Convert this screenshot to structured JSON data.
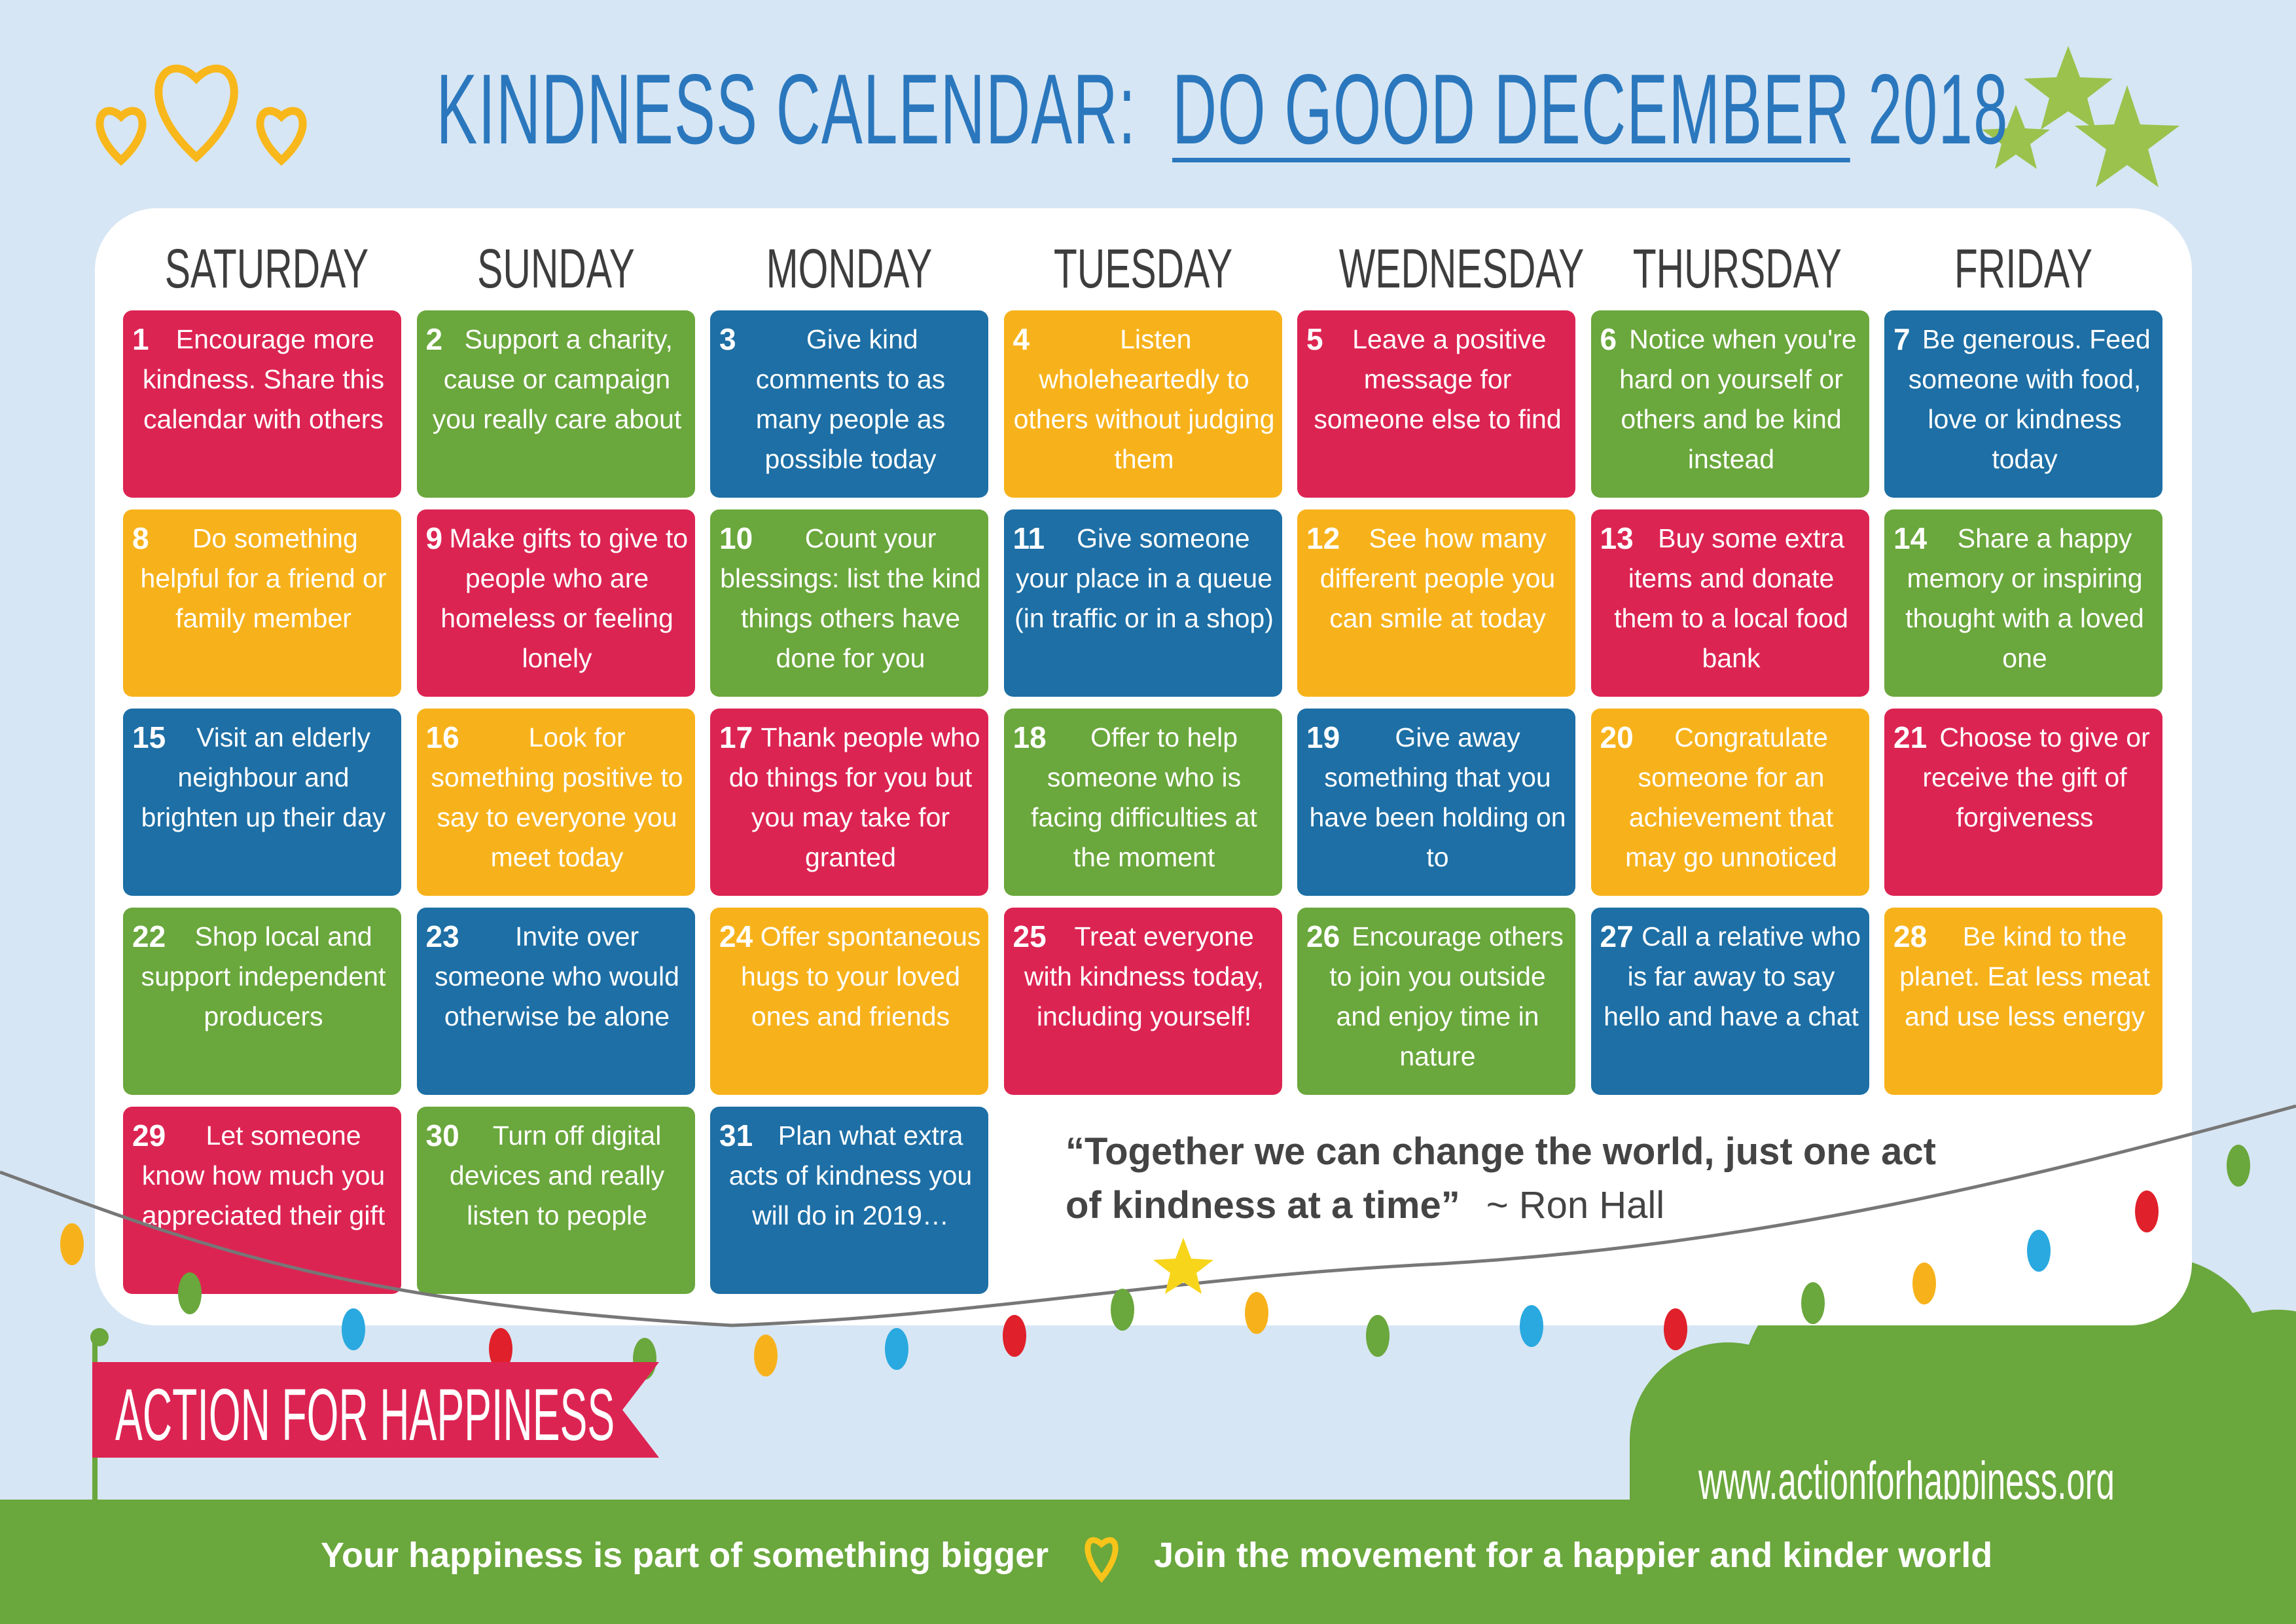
{
  "header": {
    "title": "KINDNESS CALENDAR:",
    "highlight": "DO GOOD DECEMBER",
    "year": "2018"
  },
  "weekdays": [
    "SATURDAY",
    "SUNDAY",
    "MONDAY",
    "TUESDAY",
    "WEDNESDAY",
    "THURSDAY",
    "FRIDAY"
  ],
  "days": [
    {
      "number": 1,
      "text": "Encourage more kindness. Share this calendar with others",
      "color": "#dc2452"
    },
    {
      "number": 2,
      "text": "Support a charity, cause or campaign you really care about",
      "color": "#6aa73c"
    },
    {
      "number": 3,
      "text": "Give kind comments to as many people as possible today",
      "color": "#1d6fa5"
    },
    {
      "number": 4,
      "text": "Listen wholeheartedly to others without judging them",
      "color": "#f7b21b"
    },
    {
      "number": 5,
      "text": "Leave a positive message for someone else to find",
      "color": "#dc2452"
    },
    {
      "number": 6,
      "text": "Notice when you're hard on yourself or others and be kind instead",
      "color": "#6aa73c"
    },
    {
      "number": 7,
      "text": "Be generous. Feed someone with food, love or kindness today",
      "color": "#1d6fa5"
    },
    {
      "number": 8,
      "text": "Do something helpful for a friend or family member",
      "color": "#f7b21b"
    },
    {
      "number": 9,
      "text": "Make gifts to give to people who are homeless or feeling lonely",
      "color": "#dc2452"
    },
    {
      "number": 10,
      "text": "Count your blessings: list the kind things others have done for you",
      "color": "#6aa73c"
    },
    {
      "number": 11,
      "text": "Give someone your place in a queue (in traffic or in a shop)",
      "color": "#1d6fa5"
    },
    {
      "number": 12,
      "text": "See how many different people you can smile at today",
      "color": "#f7b21b"
    },
    {
      "number": 13,
      "text": "Buy some extra items and donate them to a local food bank",
      "color": "#dc2452"
    },
    {
      "number": 14,
      "text": "Share a happy memory or inspiring thought with a loved one",
      "color": "#6aa73c"
    },
    {
      "number": 15,
      "text": "Visit an elderly neighbour and brighten up their day",
      "color": "#1d6fa5"
    },
    {
      "number": 16,
      "text": "Look for something positive to say to everyone you meet today",
      "color": "#f7b21b"
    },
    {
      "number": 17,
      "text": "Thank people who do things for you but you may take for granted",
      "color": "#dc2452"
    },
    {
      "number": 18,
      "text": "Offer to help someone who is facing difficulties at the moment",
      "color": "#6aa73c"
    },
    {
      "number": 19,
      "text": "Give away something that you have been holding on to",
      "color": "#1d6fa5"
    },
    {
      "number": 20,
      "text": "Congratulate someone for an achievement that may go unnoticed",
      "color": "#f7b21b"
    },
    {
      "number": 21,
      "text": "Choose to give or receive the gift of forgiveness",
      "color": "#dc2452"
    },
    {
      "number": 22,
      "text": "Shop local and support independent producers",
      "color": "#6aa73c"
    },
    {
      "number": 23,
      "text": "Invite over someone who would otherwise be alone",
      "color": "#1d6fa5"
    },
    {
      "number": 24,
      "text": "Offer spontaneous hugs to your loved ones and friends",
      "color": "#f7b21b"
    },
    {
      "number": 25,
      "text": "Treat everyone with kindness today, including yourself!",
      "color": "#dc2452"
    },
    {
      "number": 26,
      "text": "Encourage others to join you outside and enjoy time in nature",
      "color": "#6aa73c"
    },
    {
      "number": 27,
      "text": "Call a relative who is far away to say hello and have a chat",
      "color": "#1d6fa5"
    },
    {
      "number": 28,
      "text": "Be kind to the planet. Eat less meat and use less energy",
      "color": "#f7b21b"
    },
    {
      "number": 29,
      "text": "Let someone know how much you appreciated their gift",
      "color": "#dc2452"
    },
    {
      "number": 30,
      "text": "Turn off digital devices and really listen to people",
      "color": "#6aa73c"
    },
    {
      "number": 31,
      "text": "Plan what extra acts of kindness you will do in 2019…",
      "color": "#1d6fa5"
    }
  ],
  "quote": {
    "text": "“Together we can change the world, just one act of kindness at a time”",
    "author": "~ Ron Hall"
  },
  "banner": "ACTION FOR HAPPINESS",
  "website": "www.actionforhappiness.org",
  "footer": {
    "left": "Your happiness is part of something bigger",
    "right": "Join the movement for a happier and kinder world"
  }
}
